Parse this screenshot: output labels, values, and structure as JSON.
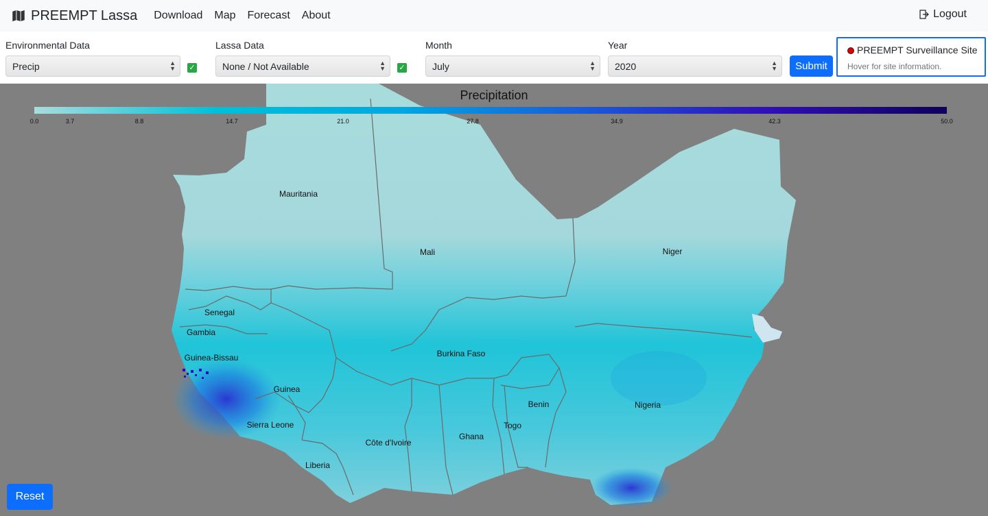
{
  "navbar": {
    "brand": "PREEMPT Lassa",
    "links": [
      "Download",
      "Map",
      "Forecast",
      "About"
    ],
    "logout": "Logout"
  },
  "controls": {
    "env_label": "Environmental Data",
    "env_value": "Precip",
    "lassa_label": "Lassa Data",
    "lassa_value": "None / Not Available",
    "month_label": "Month",
    "month_value": "July",
    "year_label": "Year",
    "year_value": "2020",
    "submit": "Submit"
  },
  "legend": {
    "title": "PREEMPT Surveillance Site",
    "hint": "Hover for site information."
  },
  "map": {
    "colorbar_title": "Precipitation",
    "ticks": [
      "0.0",
      "3.7",
      "8.8",
      "14.7",
      "21.0",
      "27.8",
      "34.9",
      "42.3",
      "50.0"
    ],
    "countries": [
      "Mauritania",
      "Mali",
      "Niger",
      "Senegal",
      "Gambia",
      "Guinea-Bissau",
      "Guinea",
      "Sierra Leone",
      "Burkina Faso",
      "Benin",
      "Nigeria",
      "Togo",
      "Ghana",
      "Côte d'Ivoire",
      "Liberia"
    ],
    "reset": "Reset"
  },
  "colors": {
    "accent": "#0d6efd",
    "map_background": "#808080",
    "site_marker": "#e00000"
  }
}
